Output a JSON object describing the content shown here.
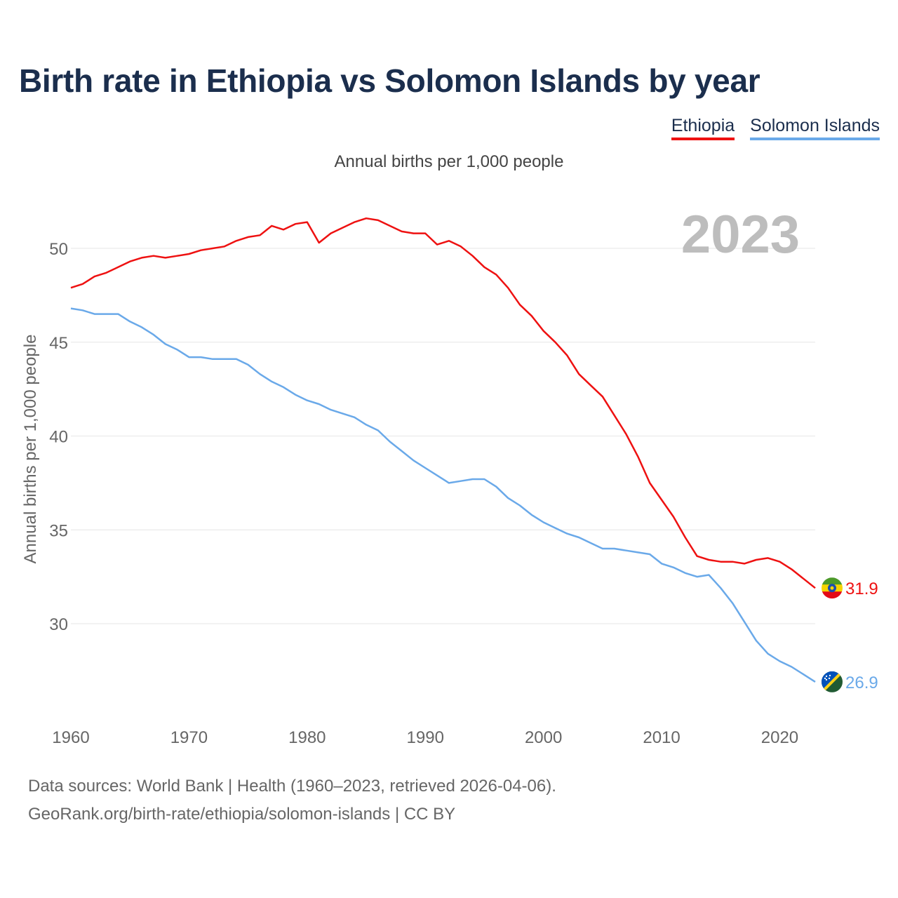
{
  "title": "Birth rate in Ethiopia vs Solomon Islands by year",
  "legend": {
    "ethiopia": "Ethiopia",
    "solomon": "Solomon Islands"
  },
  "footer": {
    "line1": "Data sources: World Bank | Health (1960–2023, retrieved 2026-04-06).",
    "line2": "GeoRank.org/birth-rate/ethiopia/solomon-islands | CC BY"
  },
  "colors": {
    "ethiopia": "#ee1111",
    "solomon": "#6aa9e9",
    "year": "#bdbdbd",
    "grid": "#e6e6e6",
    "text": "#666666"
  },
  "chart_data": {
    "type": "line",
    "title": "Birth rate in Ethiopia vs Solomon Islands by year",
    "subtitle": "Annual births per 1,000 people",
    "ylabel": "Annual births per 1,000 people",
    "xlabel": "",
    "year_label": "2023",
    "xlim": [
      1960,
      2023
    ],
    "ylim": [
      25,
      53.5
    ],
    "xticks": [
      1960,
      1970,
      1980,
      1990,
      2000,
      2010,
      2020
    ],
    "yticks": [
      30,
      35,
      40,
      45,
      50
    ],
    "x": [
      1960,
      1961,
      1962,
      1963,
      1964,
      1965,
      1966,
      1967,
      1968,
      1969,
      1970,
      1971,
      1972,
      1973,
      1974,
      1975,
      1976,
      1977,
      1978,
      1979,
      1980,
      1981,
      1982,
      1983,
      1984,
      1985,
      1986,
      1987,
      1988,
      1989,
      1990,
      1991,
      1992,
      1993,
      1994,
      1995,
      1996,
      1997,
      1998,
      1999,
      2000,
      2001,
      2002,
      2003,
      2004,
      2005,
      2006,
      2007,
      2008,
      2009,
      2010,
      2011,
      2012,
      2013,
      2014,
      2015,
      2016,
      2017,
      2018,
      2019,
      2020,
      2021,
      2022,
      2023
    ],
    "series": [
      {
        "name": "Ethiopia",
        "end_label": "31.9",
        "values": [
          47.9,
          48.1,
          48.5,
          48.7,
          49.0,
          49.3,
          49.5,
          49.6,
          49.5,
          49.6,
          49.7,
          49.9,
          50.0,
          50.1,
          50.4,
          50.6,
          50.7,
          51.2,
          51.0,
          51.3,
          51.4,
          50.3,
          50.8,
          51.1,
          51.4,
          51.6,
          51.5,
          51.2,
          50.9,
          50.8,
          50.8,
          50.2,
          50.4,
          50.1,
          49.6,
          49.0,
          48.6,
          47.9,
          47.0,
          46.4,
          45.6,
          45.0,
          44.3,
          43.3,
          42.7,
          42.1,
          41.1,
          40.1,
          38.9,
          37.5,
          36.6,
          35.7,
          34.6,
          33.6,
          33.4,
          33.3,
          33.3,
          33.2,
          33.4,
          33.5,
          33.3,
          32.9,
          32.4,
          31.9
        ]
      },
      {
        "name": "Solomon Islands",
        "end_label": "26.9",
        "values": [
          46.8,
          46.7,
          46.5,
          46.5,
          46.5,
          46.1,
          45.8,
          45.4,
          44.9,
          44.6,
          44.2,
          44.2,
          44.1,
          44.1,
          44.1,
          43.8,
          43.3,
          42.9,
          42.6,
          42.2,
          41.9,
          41.7,
          41.4,
          41.2,
          41.0,
          40.6,
          40.3,
          39.7,
          39.2,
          38.7,
          38.3,
          37.9,
          37.5,
          37.6,
          37.7,
          37.7,
          37.3,
          36.7,
          36.3,
          35.8,
          35.4,
          35.1,
          34.8,
          34.6,
          34.3,
          34.0,
          34.0,
          33.9,
          33.8,
          33.7,
          33.2,
          33.0,
          32.7,
          32.5,
          32.6,
          31.9,
          31.1,
          30.1,
          29.1,
          28.4,
          28.0,
          27.7,
          27.3,
          26.9
        ]
      }
    ]
  }
}
